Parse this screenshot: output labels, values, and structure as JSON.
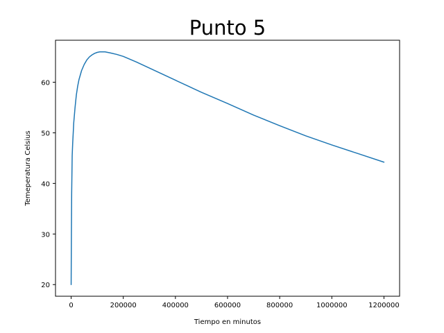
{
  "chart_data": {
    "type": "line",
    "title": "Punto 5",
    "xlabel": "Tiempo en minutos",
    "ylabel": "Temeperatura Celsius",
    "xlim": [
      -60000,
      1260000
    ],
    "ylim": [
      17.7,
      68.3
    ],
    "grid": false,
    "xticks": [
      0,
      200000,
      400000,
      600000,
      800000,
      1000000,
      1200000
    ],
    "xtick_labels": [
      "0",
      "200000",
      "400000",
      "600000",
      "800000",
      "1000000",
      "1200000"
    ],
    "yticks": [
      20,
      30,
      40,
      50,
      60
    ],
    "ytick_labels": [
      "20",
      "30",
      "40",
      "50",
      "60"
    ],
    "series": [
      {
        "color": "#1f77b4",
        "x": [
          0,
          1000,
          2000,
          4000,
          6000,
          10000,
          15000,
          20000,
          25000,
          30000,
          40000,
          50000,
          60000,
          70000,
          80000,
          90000,
          100000,
          110000,
          120000,
          130000,
          140000,
          150000,
          175000,
          200000,
          250000,
          300000,
          350000,
          400000,
          450000,
          500000,
          600000,
          700000,
          800000,
          900000,
          1000000,
          1100000,
          1200000
        ],
        "y": [
          20.0,
          30.0,
          38.0,
          45.5,
          48.0,
          52.0,
          55.0,
          57.5,
          59.2,
          60.5,
          62.3,
          63.5,
          64.4,
          65.0,
          65.4,
          65.7,
          65.9,
          66.0,
          66.0,
          66.0,
          65.9,
          65.8,
          65.5,
          65.1,
          64.0,
          62.8,
          61.6,
          60.4,
          59.2,
          58.0,
          55.8,
          53.5,
          51.4,
          49.4,
          47.6,
          45.9,
          44.2
        ]
      }
    ]
  }
}
